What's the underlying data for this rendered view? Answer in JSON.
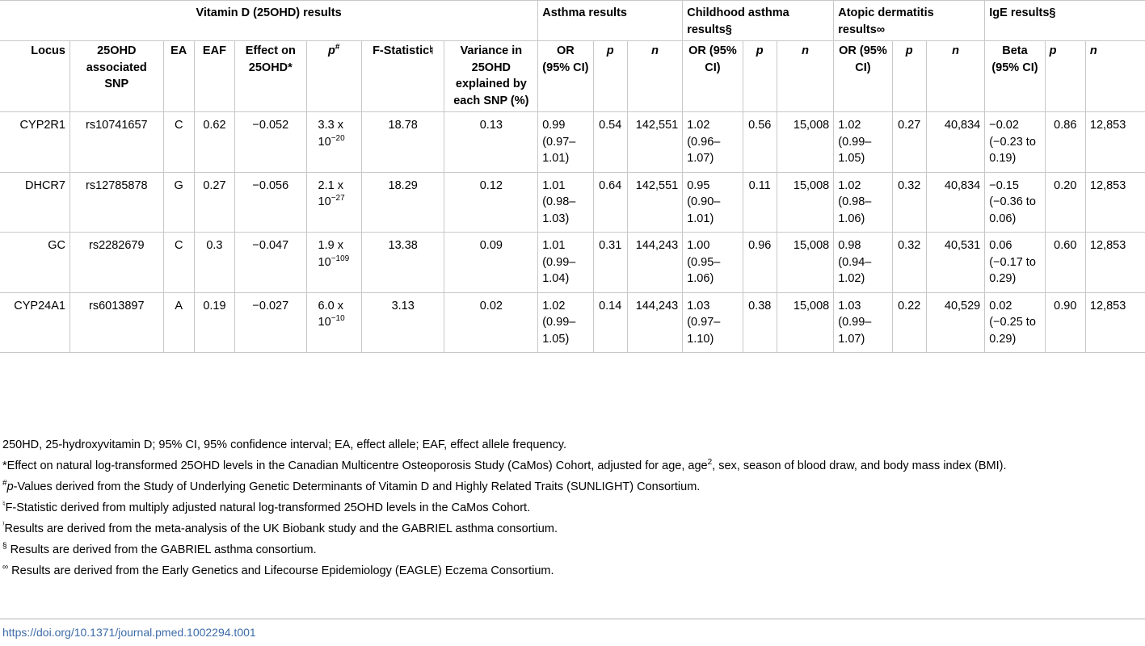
{
  "groups": {
    "vitd": "Vitamin D (25OHD) results",
    "asthma": "Asthma results",
    "child": "Childhood asthma results§",
    "atopic": "Atopic dermatitis results∞",
    "ige": "IgE results§"
  },
  "columns": {
    "locus": "Locus",
    "snp": "25OHD associated SNP",
    "ea": "EA",
    "eaf": "EAF",
    "effect": "Effect on 25OHD*",
    "p": "p",
    "p_sup": "#",
    "fstat": "F-Statistic♮",
    "variance": "Variance in 25OHD explained by each SNP (%)",
    "or": "OR (95% CI)",
    "pcol": "p",
    "n": "n",
    "beta": "Beta (95% CI)"
  },
  "rows": [
    {
      "locus": "CYP2R1",
      "snp": "rs10741657",
      "ea": "C",
      "eaf": "0.62",
      "effect": "−0.052",
      "p_base": "3.3 x 10",
      "p_exp": "−20",
      "fstat": "18.78",
      "variance": "0.13",
      "a_or": "0.99 (0.97–1.01)",
      "a_p": "0.54",
      "a_n": "142,551",
      "c_or": "1.02 (0.96–1.07)",
      "c_p": "0.56",
      "c_n": "15,008",
      "d_or": "1.02 (0.99–1.05)",
      "d_p": "0.27",
      "d_n": "40,834",
      "i_beta": "−0.02 (−0.23 to 0.19)",
      "i_p": "0.86",
      "i_n": "12,853"
    },
    {
      "locus": "DHCR7",
      "snp": "rs12785878",
      "ea": "G",
      "eaf": "0.27",
      "effect": "−0.056",
      "p_base": "2.1 x 10",
      "p_exp": "−27",
      "fstat": "18.29",
      "variance": "0.12",
      "a_or": "1.01 (0.98–1.03)",
      "a_p": "0.64",
      "a_n": "142,551",
      "c_or": "0.95 (0.90–1.01)",
      "c_p": "0.11",
      "c_n": "15,008",
      "d_or": "1.02 (0.98–1.06)",
      "d_p": "0.32",
      "d_n": "40,834",
      "i_beta": "−0.15 (−0.36 to 0.06)",
      "i_p": "0.20",
      "i_n": "12,853"
    },
    {
      "locus": "GC",
      "snp": "rs2282679",
      "ea": "C",
      "eaf": "0.3",
      "effect": "−0.047",
      "p_base": "1.9 x 10",
      "p_exp": "−109",
      "fstat": "13.38",
      "variance": "0.09",
      "a_or": "1.01 (0.99–1.04)",
      "a_p": "0.31",
      "a_n": "144,243",
      "c_or": "1.00 (0.95–1.06)",
      "c_p": "0.96",
      "c_n": "15,008",
      "d_or": "0.98 (0.94–1.02)",
      "d_p": "0.32",
      "d_n": "40,531",
      "i_beta": "0.06 (−0.17 to 0.29)",
      "i_p": "0.60",
      "i_n": "12,853"
    },
    {
      "locus": "CYP24A1",
      "snp": "rs6013897",
      "ea": "A",
      "eaf": "0.19",
      "effect": "−0.027",
      "p_base": "6.0 x 10",
      "p_exp": "−10",
      "fstat": "3.13",
      "variance": "0.02",
      "a_or": "1.02 (0.99–1.05)",
      "a_p": "0.14",
      "a_n": "144,243",
      "c_or": "1.03 (0.97–1.10)",
      "c_p": "0.38",
      "c_n": "15,008",
      "d_or": "1.03 (0.99–1.07)",
      "d_p": "0.22",
      "d_n": "40,529",
      "i_beta": "0.02 (−0.25 to 0.29)",
      "i_p": "0.90",
      "i_n": "12,853"
    }
  ],
  "notes": {
    "abbrev": "250HD, 25-hydroxyvitamin D; 95% CI, 95% confidence interval; EA, effect allele; EAF, effect allele frequency.",
    "star_a": "*Effect on natural log-transformed 25OHD levels in the Canadian Multicentre Osteoporosis Study (CaMos) Cohort, adjusted for age, age",
    "star_sup": "2",
    "star_b": ", sex, season of blood draw, and body mass index (BMI).",
    "hash_sup": "#",
    "hash_p": "p",
    "hash_text": "-Values derived from the Study of Underlying Genetic Determinants of Vitamin D and Highly Related Traits (SUNLIGHT) Consortium.",
    "natural_sup": "♮",
    "natural_text": "F-Statistic derived from multiply adjusted natural log-transformed 25OHD levels in the CaMos Cohort.",
    "rparen_sup": "⁾",
    "rparen_text": "Results are derived from the meta-analysis of the UK Biobank study and the GABRIEL asthma consortium.",
    "section_sup": "§",
    "section_text": " Results are derived from the GABRIEL asthma consortium.",
    "inf_sup": "∞",
    "inf_text": " Results are derived from the Early Genetics and Lifecourse Epidemiology (EAGLE) Eczema Consortium."
  },
  "doi": "https://doi.org/10.1371/journal.pmed.1002294.t001"
}
